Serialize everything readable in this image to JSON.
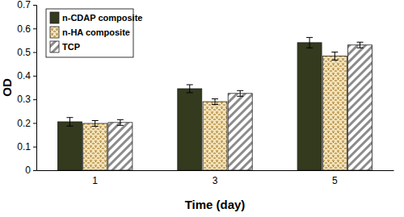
{
  "chart_data": {
    "type": "bar",
    "x_label": "Time (day)",
    "y_label": "OD",
    "categories": [
      "1",
      "3",
      "5"
    ],
    "series": [
      {
        "name": "n-CDAP composite",
        "color": "#333a1e",
        "values": [
          0.205,
          0.345,
          0.54
        ],
        "errors": [
          0.018,
          0.017,
          0.022
        ]
      },
      {
        "name": "n-HA composite",
        "color": "#c9a866",
        "values": [
          0.198,
          0.29,
          0.483
        ],
        "errors": [
          0.012,
          0.012,
          0.017
        ]
      },
      {
        "name": "TCP",
        "color": "#8c8c8c",
        "values": [
          0.202,
          0.325,
          0.53
        ],
        "errors": [
          0.012,
          0.012,
          0.012
        ]
      }
    ],
    "ylim": [
      0,
      0.7
    ],
    "yticks": [
      0,
      0.1,
      0.2,
      0.3,
      0.4,
      0.5,
      0.6,
      0.7
    ],
    "legend": "upper left",
    "grid": false
  }
}
